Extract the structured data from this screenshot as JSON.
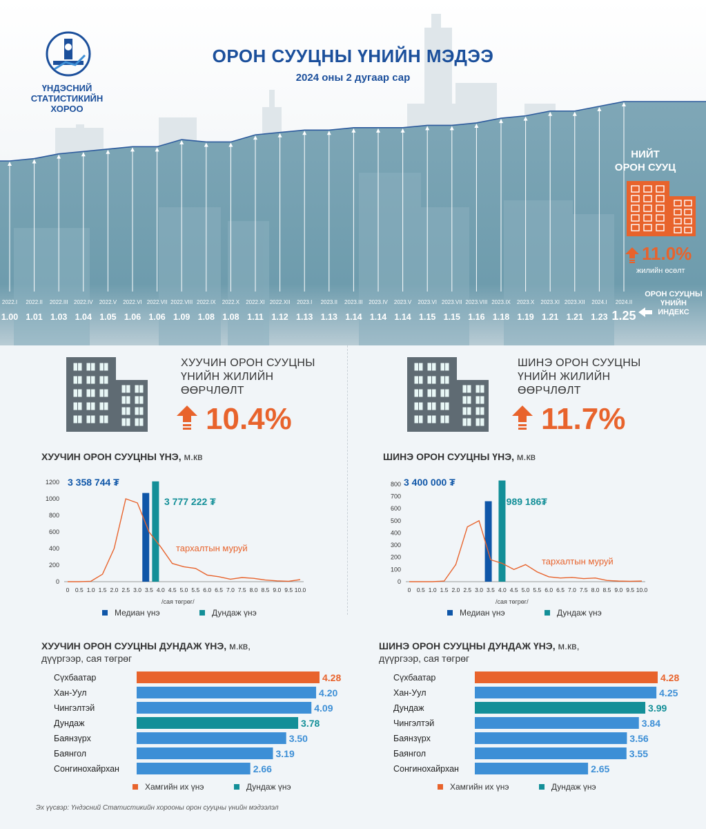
{
  "org": {
    "name_lines": [
      "ҮНДЭСНИЙ",
      "СТАТИСТИКИЙН",
      "ХОРОО"
    ]
  },
  "header": {
    "title": "ОРОН СУУЦНЫ ҮНИЙН МЭДЭЭ",
    "subtitle": "2024 оны 2 дугаар сар"
  },
  "total": {
    "title_lines": [
      "НИЙТ",
      "ОРОН СУУЦ"
    ],
    "growth": "11.0%",
    "growth_label": "жилийн өсөлт",
    "index_label_lines": [
      "ОРОН СУУЦНЫ",
      "ҮНИЙН",
      "ИНДЕКС"
    ]
  },
  "old": {
    "change_title_lines": [
      "ХУУЧИН ОРОН СУУЦНЫ",
      "ҮНИЙН ЖИЛИЙН",
      "ӨӨРЧЛӨЛТ"
    ],
    "change": "10.4%",
    "price_title": "ХУУЧИН ОРОН СУУЦНЫ ҮНЭ,",
    "price_unit": " м.кв",
    "median_value": "3 358 744 ₮",
    "mean_value": "3 777 222 ₮",
    "curve_label": "тархалтын муруй",
    "x_unit": "/сая төгрөг/",
    "legend_median": "Медиан үнэ",
    "legend_mean": "Дундаж үнэ",
    "district_title_1": "ХУУЧИН ОРОН СУУЦНЫ ДУНДАЖ ҮНЭ,",
    "district_title_1_unit": " м.кв,",
    "district_title_2": "дүүргээр, сая төгрөг",
    "legend_max": "Хамгийн их үнэ",
    "legend_avg": "Дундаж үнэ"
  },
  "new": {
    "change_title_lines": [
      "ШИНЭ ОРОН СУУЦНЫ",
      "ҮНИЙН ЖИЛИЙН",
      "ӨӨРЧЛӨЛТ"
    ],
    "change": "11.7%",
    "price_title": "ШИНЭ ОРОН СУУЦНЫ ҮНЭ,",
    "price_unit": " м.кв",
    "median_value": "3 400 000 ₮",
    "mean_value": "3 989 186₮",
    "curve_label": "тархалтын муруй",
    "x_unit": "/сая төгрөг/",
    "legend_median": "Медиан үнэ",
    "legend_mean": "Дундаж үнэ",
    "district_title_1": "ШИНЭ ОРОН СУУЦНЫ ДУНДАЖ ҮНЭ,",
    "district_title_1_unit": " м.кв,",
    "district_title_2": "дүүргээр, сая төгрөг",
    "legend_max": "Хамгийн их үнэ",
    "legend_avg": "Дундаж үнэ"
  },
  "source": "Эх үүсвэр: Үндэсний Статистикийн хорооны орон сууцны үнийн мэдээлэл",
  "colors": {
    "orange": "#e8632c",
    "blue": "#3d8fd6",
    "teal": "#138f98",
    "navy": "#1b4f9b",
    "dark_blue": "#0f56a8"
  },
  "chart_data": [
    {
      "type": "line",
      "categories": [
        "2022.I",
        "2022.II",
        "2022.III",
        "2022.IV",
        "2022.V",
        "2022.VI",
        "2022.VII",
        "2022.VIII",
        "2022.IX",
        "2022.X",
        "2022.XI",
        "2022.XII",
        "2023.I",
        "2023.II",
        "2023.III",
        "2023.IV",
        "2023.V",
        "2023.VI",
        "2023.VII",
        "2023.VIII",
        "2023.IX",
        "2023.X",
        "2023.XI",
        "2023.XII",
        "2024.I",
        "2024.II"
      ],
      "values": [
        1.0,
        1.01,
        1.03,
        1.04,
        1.05,
        1.06,
        1.06,
        1.09,
        1.08,
        1.08,
        1.11,
        1.12,
        1.13,
        1.13,
        1.14,
        1.14,
        1.14,
        1.15,
        1.15,
        1.16,
        1.18,
        1.19,
        1.21,
        1.21,
        1.23,
        1.25
      ],
      "value_labels": [
        "1.00",
        "1.01",
        "1.03",
        "1.04",
        "1.05",
        "1.06",
        "1.06",
        "1.09",
        "1.08",
        "1.08",
        "1.11",
        "1.12",
        "1.13",
        "1.13",
        "1.14",
        "1.14",
        "1.14",
        "1.15",
        "1.15",
        "1.16",
        "1.18",
        "1.19",
        "1.21",
        "1.21",
        "1.23",
        "1.25"
      ],
      "title": "",
      "ylim": [
        1.0,
        1.25
      ]
    },
    {
      "type": "bar+line",
      "x": [
        0,
        0.5,
        1.0,
        1.5,
        2.0,
        2.5,
        3.0,
        3.5,
        4.0,
        4.5,
        5.0,
        5.5,
        6.0,
        6.5,
        7.0,
        7.5,
        8.0,
        8.5,
        9.0,
        9.5,
        10.0
      ],
      "x_labels": [
        "0",
        "0.5",
        "1.0",
        "1.5",
        "2.0",
        "2.5",
        "3.0",
        "3.5",
        "4.0",
        "4.5",
        "5.0",
        "5.5",
        "6.0",
        "6.5",
        "7.0",
        "7.5",
        "8.0",
        "8.5",
        "9.0",
        "9.5",
        "10.0"
      ],
      "curve": [
        0,
        0,
        5,
        90,
        400,
        1000,
        950,
        600,
        420,
        220,
        180,
        160,
        80,
        60,
        30,
        50,
        40,
        20,
        10,
        5,
        25
      ],
      "median_bar": {
        "x": 3.36,
        "value": 1070
      },
      "mean_bar": {
        "x": 3.78,
        "value": 1210
      },
      "yticks": [
        0,
        200,
        400,
        600,
        800,
        1000,
        1200
      ],
      "ylim": [
        0,
        1250
      ],
      "xlim": [
        0,
        10
      ]
    },
    {
      "type": "bar+line",
      "x": [
        0,
        0.5,
        1.0,
        1.5,
        2.0,
        2.5,
        3.0,
        3.5,
        4.0,
        4.5,
        5.0,
        5.5,
        6.0,
        6.5,
        7.0,
        7.5,
        8.0,
        8.5,
        9.0,
        9.5,
        10.0
      ],
      "x_labels": [
        "0",
        "0.5",
        "1.0",
        "1.5",
        "2.0",
        "2.5",
        "3.0",
        "3.5",
        "4.0",
        "4.5",
        "5.0",
        "5.5",
        "6.0",
        "6.5",
        "7.0",
        "7.5",
        "8.0",
        "8.5",
        "9.0",
        "9.5",
        "10.0"
      ],
      "curve": [
        0,
        0,
        0,
        5,
        140,
        450,
        500,
        180,
        150,
        100,
        140,
        80,
        40,
        30,
        35,
        25,
        30,
        10,
        5,
        3,
        5
      ],
      "median_bar": {
        "x": 3.4,
        "value": 660
      },
      "mean_bar": {
        "x": 3.99,
        "value": 830
      },
      "yticks": [
        0,
        100,
        200,
        300,
        400,
        500,
        600,
        700,
        800
      ],
      "ylim": [
        0,
        850
      ],
      "xlim": [
        0,
        10
      ]
    },
    {
      "type": "bar",
      "orientation": "horizontal",
      "categories": [
        "Сүхбаатар",
        "Хан-Уул",
        "Чингэлтэй",
        "Дундаж",
        "Баянзүрх",
        "Баянгол",
        "Сонгинохайрхан"
      ],
      "values": [
        4.28,
        4.2,
        4.09,
        3.78,
        3.5,
        3.19,
        2.66
      ],
      "value_labels": [
        "4.28",
        "4.20",
        "4.09",
        "3.78",
        "3.50",
        "3.19",
        "2.66"
      ],
      "kinds": [
        "max",
        "normal",
        "normal",
        "avg",
        "normal",
        "normal",
        "normal"
      ],
      "xlim": [
        0,
        4.28
      ]
    },
    {
      "type": "bar",
      "orientation": "horizontal",
      "categories": [
        "Сүхбаатар",
        "Хан-Уул",
        "Дундаж",
        "Чингэлтэй",
        "Баянзүрх",
        "Баянгол",
        "Сонгинохайрхан"
      ],
      "values": [
        4.28,
        4.25,
        3.99,
        3.84,
        3.56,
        3.55,
        2.65
      ],
      "value_labels": [
        "4.28",
        "4.25",
        "3.99",
        "3.84",
        "3.56",
        "3.55",
        "2.65"
      ],
      "kinds": [
        "max",
        "normal",
        "avg",
        "normal",
        "normal",
        "normal",
        "normal"
      ],
      "xlim": [
        0,
        4.28
      ]
    }
  ]
}
